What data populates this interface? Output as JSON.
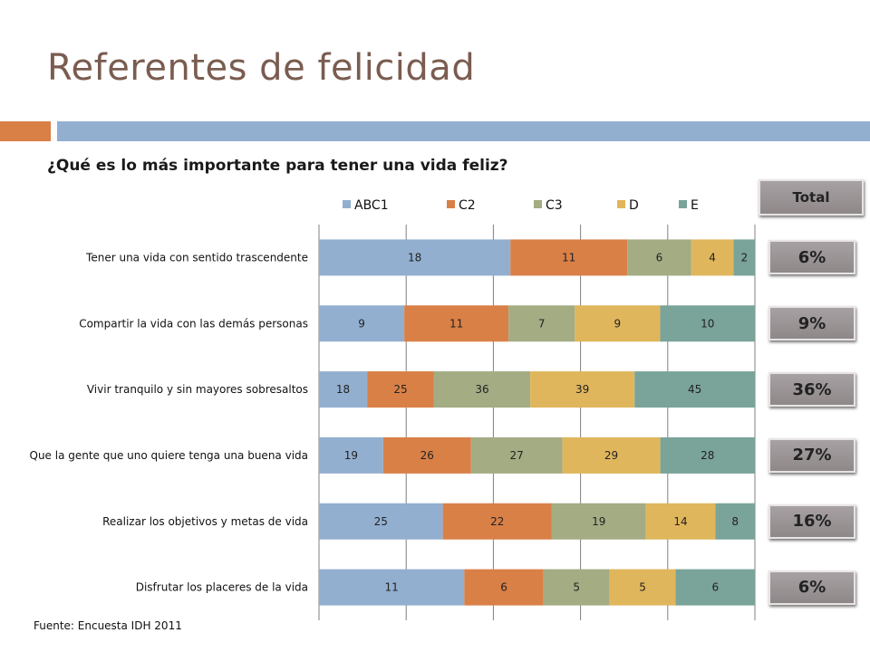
{
  "slide": {
    "title": "Referentes de felicidad",
    "subtitle": "¿Qué es lo más importante para tener una vida feliz?",
    "source": "Fuente: Encuesta IDH 2011",
    "total_label": "Total",
    "totals": [
      "6%",
      "9%",
      "36%",
      "27%",
      "16%",
      "6%"
    ]
  },
  "colors": {
    "title": "#7a5c50",
    "accent_orange": "#d98047",
    "accent_blue": "#93afd0",
    "ABC1": "#93afd0",
    "C2": "#d98047",
    "C3": "#a3ac83",
    "D": "#e0b65c",
    "E": "#7aa39a"
  },
  "chart_data": {
    "type": "bar",
    "orientation": "horizontal",
    "stacked": "100%",
    "categories": [
      "Tener una vida con sentido trascendente",
      "Compartir la vida con las demás personas",
      "Vivir tranquilo y sin mayores sobresaltos",
      "Que la gente que uno quiere tenga una buena vida",
      "Realizar los objetivos y metas de vida",
      "Disfrutar los placeres de la vida"
    ],
    "series": [
      {
        "name": "ABC1",
        "values": [
          18,
          9,
          18,
          19,
          25,
          11
        ]
      },
      {
        "name": "C2",
        "values": [
          11,
          11,
          25,
          26,
          22,
          6
        ]
      },
      {
        "name": "C3",
        "values": [
          6,
          7,
          36,
          27,
          19,
          5
        ]
      },
      {
        "name": "D",
        "values": [
          4,
          9,
          39,
          29,
          14,
          5
        ]
      },
      {
        "name": "E",
        "values": [
          2,
          10,
          45,
          28,
          8,
          6
        ]
      }
    ],
    "legend_position": "top",
    "grid": true
  }
}
